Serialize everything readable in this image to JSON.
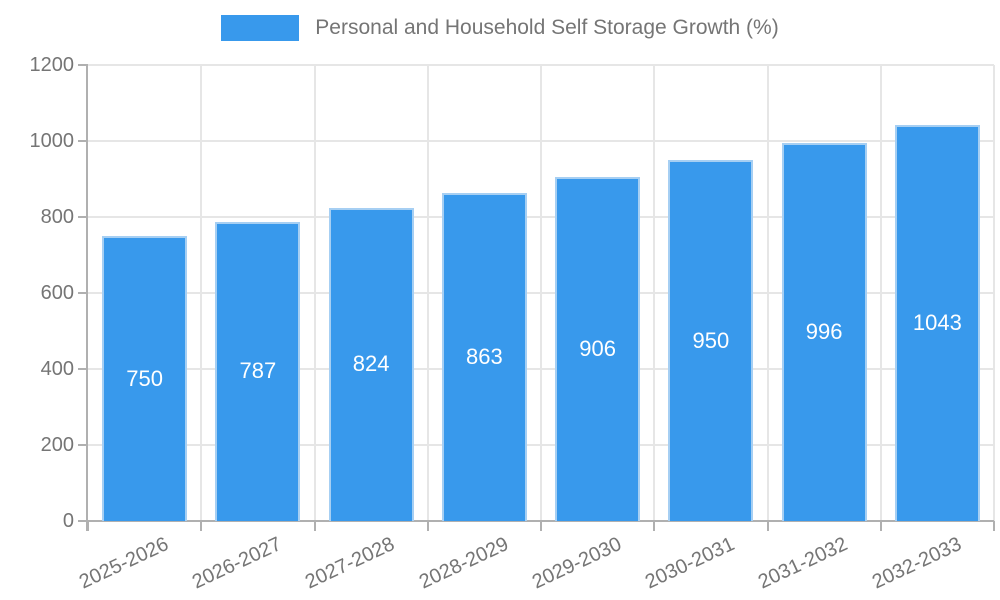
{
  "legend": {
    "label": "Personal and Household Self Storage Growth (%)"
  },
  "chart_data": {
    "type": "bar",
    "title": "Personal and Household Self Storage Growth (%)",
    "categories": [
      "2025-2026",
      "2026-2027",
      "2027-2028",
      "2028-2029",
      "2029-2030",
      "2030-2031",
      "2031-2032",
      "2032-2033"
    ],
    "series": [
      {
        "name": "Personal and Household Self Storage Growth (%)",
        "values": [
          750,
          787,
          824,
          863,
          906,
          950,
          996,
          1043
        ]
      }
    ],
    "xlabel": "",
    "ylabel": "",
    "ylim": [
      0,
      1200
    ],
    "ytick_step": 200,
    "ytick_labels": [
      "0",
      "200",
      "400",
      "600",
      "800",
      "1000",
      "1200"
    ],
    "grid": true,
    "legend_position": "top",
    "value_labels_inside_bars": true,
    "x_label_rotation_deg": -25
  },
  "colors": {
    "bar_fill": "#3899EC",
    "bar_border": "#A6CFF3",
    "grid": "#E6E6E6",
    "axis": "#B0B0B0",
    "tick_text": "#757575",
    "legend_text": "#757575",
    "value_label_text": "#FFFFFF",
    "background": "#FFFFFF"
  }
}
